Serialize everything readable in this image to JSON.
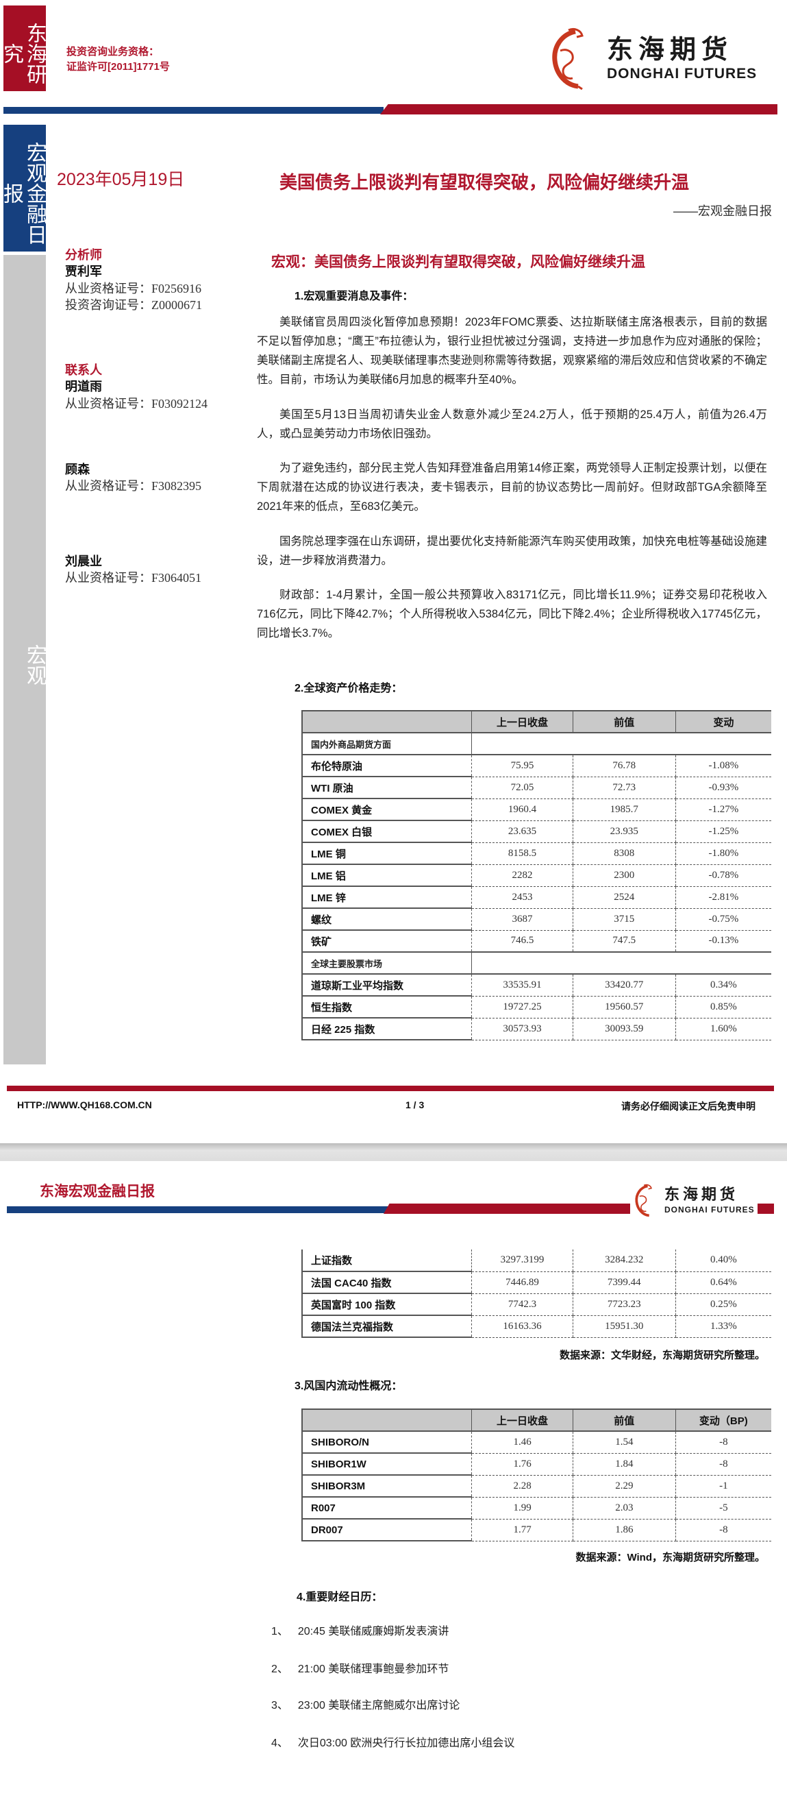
{
  "sidebar": {
    "research": "东海研究",
    "report_type": "宏观金融日报",
    "category": "宏观"
  },
  "license": {
    "line1": "投资咨询业务资格：",
    "line2": "证监许可[2011]1771号"
  },
  "logo": {
    "cn": "东海期货",
    "en": "DONGHAI FUTURES"
  },
  "colors": {
    "brand_red": "#a50f25",
    "brand_blue": "#16407f",
    "sidebar_gray": "#c8c8c8"
  },
  "header": {
    "date": "2023年05月19日",
    "title": "美国债务上限谈判有望取得突破，风险偏好继续升温",
    "subtitle": "——宏观金融日报"
  },
  "analysts": {
    "analyst_heading": "分析师",
    "analyst": {
      "name": "贾利军",
      "cert": "从业资格证号：F0256916",
      "consult": "投资咨询证号：Z0000671"
    },
    "contact_heading": "联系人",
    "contacts": [
      {
        "name": "明道雨",
        "cert": "从业资格证号：F03092124"
      },
      {
        "name": "顾森",
        "cert": "从业资格证号：F3082395"
      },
      {
        "name": "刘晨业",
        "cert": "从业资格证号：F3064051"
      }
    ]
  },
  "main": {
    "headline": "宏观：美国债务上限谈判有望取得突破，风险偏好继续升温",
    "section1": "1.宏观重要消息及事件：",
    "paragraphs": [
      "美联储官员周四淡化暂停加息预期！2023年FOMC票委、达拉斯联储主席洛根表示，目前的数据不足以暂停加息；“鹰王”布拉德认为，银行业担忧被过分强调，支持进一步加息作为应对通胀的保险；美联储副主席提名人、现美联储理事杰斐逊则称需等待数据，观察紧缩的滞后效应和信贷收紧的不确定性。目前，市场认为美联储6月加息的概率升至40%。",
      "美国至5月13日当周初请失业金人数意外减少至24.2万人，低于预期的25.4万人，前值为26.4万人，或凸显美劳动力市场依旧强劲。",
      "为了避免违约，部分民主党人告知拜登准备启用第14修正案，两党领导人正制定投票计划，以便在下周就潜在达成的协议进行表决，麦卡锡表示，目前的协议态势比一周前好。但财政部TGA余额降至2021年来的低点，至683亿美元。",
      "国务院总理李强在山东调研，提出要优化支持新能源汽车购买使用政策，加快充电桩等基础设施建设，进一步释放消费潜力。",
      "财政部：1-4月累计，全国一般公共预算收入83171亿元，同比增长11.9%；证券交易印花税收入716亿元，同比下降42.7%；个人所得税收入5384亿元，同比下降2.4%；企业所得税收入17745亿元，同比增长3.7%。"
    ],
    "section2": "2.全球资产价格走势：",
    "asset_table": {
      "headers": [
        "",
        "上一日收盘",
        "前值",
        "变动"
      ],
      "groups": [
        {
          "label": "国内外商品期货方面",
          "rows": [
            [
              "布伦特原油",
              "75.95",
              "76.78",
              "-1.08%"
            ],
            [
              "WTI 原油",
              "72.05",
              "72.73",
              "-0.93%"
            ],
            [
              "COMEX 黄金",
              "1960.4",
              "1985.7",
              "-1.27%"
            ],
            [
              "COMEX 白银",
              "23.635",
              "23.935",
              "-1.25%"
            ],
            [
              "LME 铜",
              "8158.5",
              "8308",
              "-1.80%"
            ],
            [
              "LME 铝",
              "2282",
              "2300",
              "-0.78%"
            ],
            [
              "LME 锌",
              "2453",
              "2524",
              "-2.81%"
            ],
            [
              "螺纹",
              "3687",
              "3715",
              "-0.75%"
            ],
            [
              "铁矿",
              "746.5",
              "747.5",
              "-0.13%"
            ]
          ]
        },
        {
          "label": "全球主要股票市场",
          "rows": [
            [
              "道琼斯工业平均指数",
              "33535.91",
              "33420.77",
              "0.34%"
            ],
            [
              "恒生指数",
              "19727.25",
              "19560.57",
              "0.85%"
            ],
            [
              "日经 225 指数",
              "30573.93",
              "30093.59",
              "1.60%"
            ]
          ]
        }
      ],
      "continued_rows": [
        [
          "上证指数",
          "3297.3199",
          "3284.232",
          "0.40%"
        ],
        [
          "法国 CAC40 指数",
          "7446.89",
          "7399.44",
          "0.64%"
        ],
        [
          "英国富时 100 指数",
          "7742.3",
          "7723.23",
          "0.25%"
        ],
        [
          "德国法兰克福指数",
          "16163.36",
          "15951.30",
          "1.33%"
        ]
      ],
      "source": "数据来源：文华财经，东海期货研究所整理。"
    },
    "section3": "3.风国内流动性概况：",
    "liquidity_table": {
      "headers": [
        "",
        "上一日收盘",
        "前值",
        "变动（BP)"
      ],
      "rows": [
        [
          "SHIBORO/N",
          "1.46",
          "1.54",
          "-8"
        ],
        [
          "SHIBOR1W",
          "1.76",
          "1.84",
          "-8"
        ],
        [
          "SHIBOR3M",
          "2.28",
          "2.29",
          "-1"
        ],
        [
          "R007",
          "1.99",
          "2.03",
          "-5"
        ],
        [
          "DR007",
          "1.77",
          "1.86",
          "-8"
        ]
      ],
      "source": "数据来源：Wind，东海期货研究所整理。"
    },
    "section4": "4.重要财经日历：",
    "calendar": [
      {
        "num": "1、",
        "text": "20:45 美联储威廉姆斯发表演讲"
      },
      {
        "num": "2、",
        "text": "21:00 美联储理事鲍曼参加环节"
      },
      {
        "num": "3、",
        "text": "23:00 美联储主席鲍威尔出席讨论"
      },
      {
        "num": "4、",
        "text": "次日03:00 欧洲央行行长拉加德出席小组会议"
      }
    ]
  },
  "footer": {
    "url": "HTTP://WWW.QH168.COM.CN",
    "page": "1 / 3",
    "disclaimer": "请务必仔细阅读正文后免责申明"
  },
  "page2_header": {
    "title": "东海宏观金融日报"
  }
}
